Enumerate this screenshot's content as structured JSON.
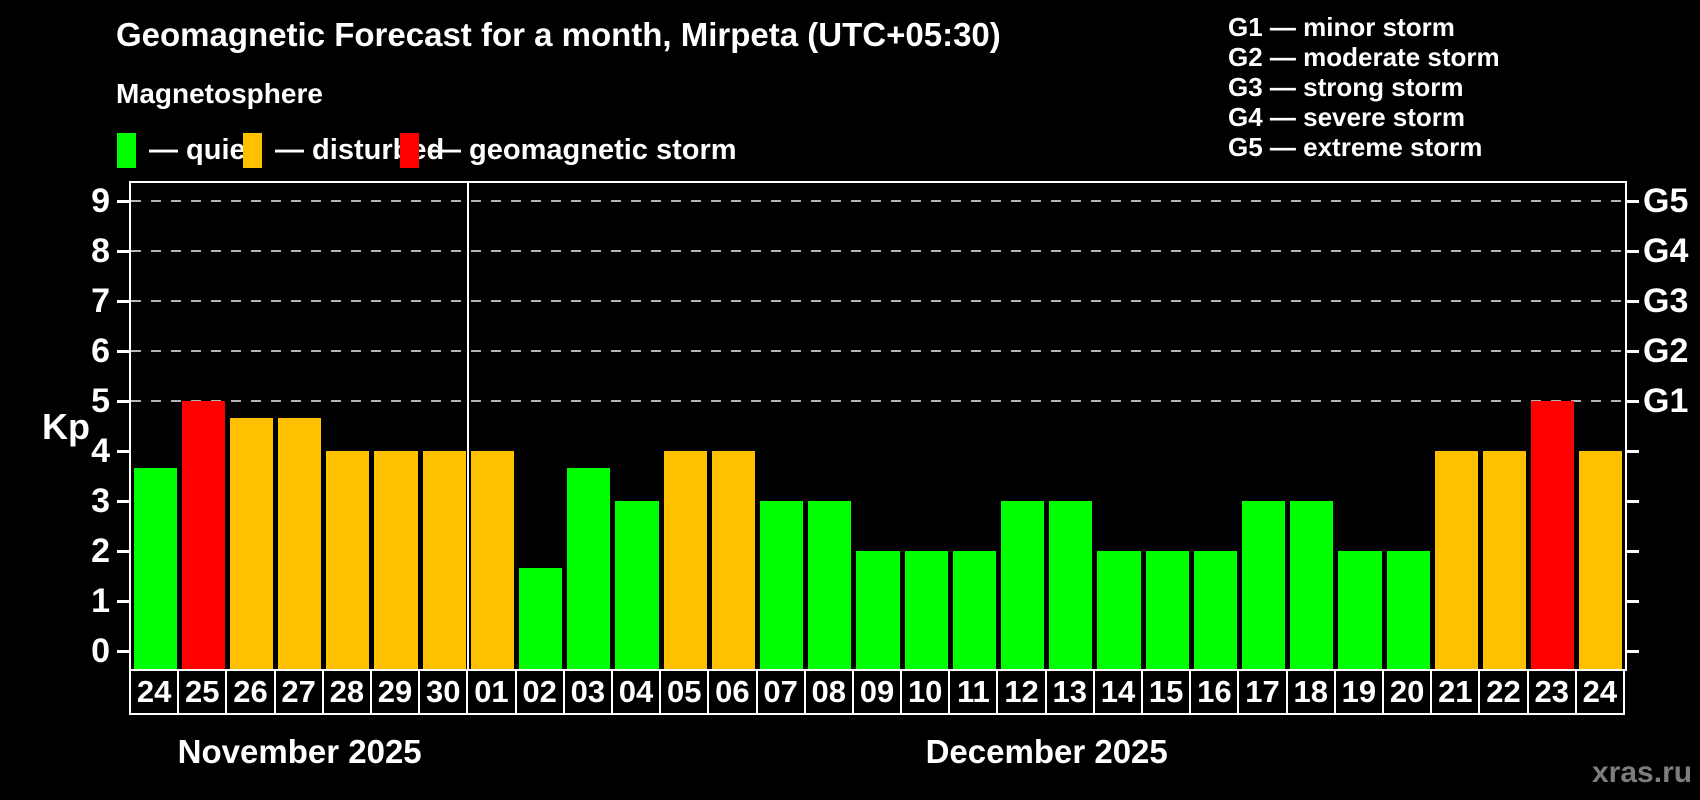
{
  "chart_data": {
    "type": "bar",
    "title": "Geomagnetic Forecast for a month, Mirpeta (UTC+05:30)",
    "subtitle": "Magnetosphere",
    "ylabel": "Kp",
    "ylim": [
      0,
      9
    ],
    "yticks": [
      0,
      1,
      2,
      3,
      4,
      5,
      6,
      7,
      8,
      9
    ],
    "grid_levels": [
      5,
      6,
      7,
      8,
      9
    ],
    "right_axis": [
      {
        "kp": 5,
        "label": "G1"
      },
      {
        "kp": 6,
        "label": "G2"
      },
      {
        "kp": 7,
        "label": "G3"
      },
      {
        "kp": 8,
        "label": "G4"
      },
      {
        "kp": 9,
        "label": "G5"
      }
    ],
    "separator_after_index": 6,
    "months": [
      {
        "label": "November 2025",
        "start": 0,
        "end": 6
      },
      {
        "label": "December 2025",
        "start": 7,
        "end": 30
      }
    ],
    "status_colors": {
      "quiet": "#00ff00",
      "disturbed": "#ffc000",
      "storm": "#ff0000"
    },
    "days": [
      {
        "date": "24",
        "kp": 3.67,
        "status": "quiet"
      },
      {
        "date": "25",
        "kp": 5,
        "status": "storm"
      },
      {
        "date": "26",
        "kp": 4.67,
        "status": "disturbed"
      },
      {
        "date": "27",
        "kp": 4.67,
        "status": "disturbed"
      },
      {
        "date": "28",
        "kp": 4,
        "status": "disturbed"
      },
      {
        "date": "29",
        "kp": 4,
        "status": "disturbed"
      },
      {
        "date": "30",
        "kp": 4,
        "status": "disturbed"
      },
      {
        "date": "01",
        "kp": 4,
        "status": "disturbed"
      },
      {
        "date": "02",
        "kp": 1.67,
        "status": "quiet"
      },
      {
        "date": "03",
        "kp": 3.67,
        "status": "quiet"
      },
      {
        "date": "04",
        "kp": 3,
        "status": "quiet"
      },
      {
        "date": "05",
        "kp": 4,
        "status": "disturbed"
      },
      {
        "date": "06",
        "kp": 4,
        "status": "disturbed"
      },
      {
        "date": "07",
        "kp": 3,
        "status": "quiet"
      },
      {
        "date": "08",
        "kp": 3,
        "status": "quiet"
      },
      {
        "date": "09",
        "kp": 2,
        "status": "quiet"
      },
      {
        "date": "10",
        "kp": 2,
        "status": "quiet"
      },
      {
        "date": "11",
        "kp": 2,
        "status": "quiet"
      },
      {
        "date": "12",
        "kp": 3,
        "status": "quiet"
      },
      {
        "date": "13",
        "kp": 3,
        "status": "quiet"
      },
      {
        "date": "14",
        "kp": 2,
        "status": "quiet"
      },
      {
        "date": "15",
        "kp": 2,
        "status": "quiet"
      },
      {
        "date": "16",
        "kp": 2,
        "status": "quiet"
      },
      {
        "date": "17",
        "kp": 3,
        "status": "quiet"
      },
      {
        "date": "18",
        "kp": 3,
        "status": "quiet"
      },
      {
        "date": "19",
        "kp": 2,
        "status": "quiet"
      },
      {
        "date": "20",
        "kp": 2,
        "status": "quiet"
      },
      {
        "date": "21",
        "kp": 4,
        "status": "disturbed"
      },
      {
        "date": "22",
        "kp": 4,
        "status": "disturbed"
      },
      {
        "date": "23",
        "kp": 5,
        "status": "storm"
      },
      {
        "date": "24",
        "kp": 4,
        "status": "disturbed"
      }
    ]
  },
  "legend": {
    "items": [
      {
        "name": "quiet",
        "label": "— quiet",
        "color": "#00ff00"
      },
      {
        "name": "disturbed",
        "label": "— disturbed",
        "color": "#ffc000"
      },
      {
        "name": "storm",
        "label": "— geomagnetic storm",
        "color": "#ff0000"
      }
    ]
  },
  "storm_legend": {
    "items": [
      {
        "label": "G1 — minor storm"
      },
      {
        "label": "G2 — moderate storm"
      },
      {
        "label": "G3 — strong storm"
      },
      {
        "label": "G4 — severe storm"
      },
      {
        "label": "G5 — extreme storm"
      }
    ]
  },
  "watermark": "xras.ru"
}
